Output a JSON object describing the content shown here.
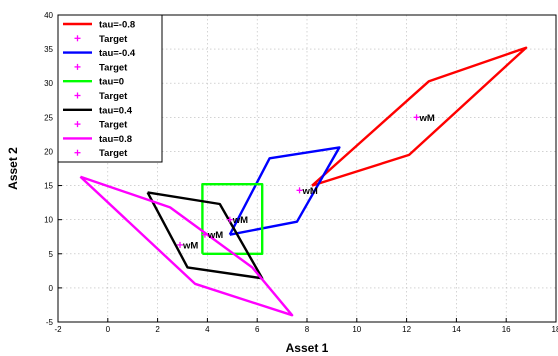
{
  "chart_data": {
    "type": "line",
    "xlabel": "Asset 1",
    "ylabel": "Asset 2",
    "xlim": [
      -2,
      18
    ],
    "ylim": [
      -5,
      40
    ],
    "xticks": [
      -2,
      0,
      2,
      4,
      6,
      8,
      10,
      12,
      14,
      16,
      18
    ],
    "yticks": [
      -5,
      0,
      5,
      10,
      15,
      20,
      25,
      30,
      35,
      40
    ],
    "grid": true,
    "legend_position": "top-left",
    "series": [
      {
        "name": "tau=-0.8",
        "color": "#ff0000",
        "points": [
          [
            8.2,
            15.0
          ],
          [
            12.9,
            30.3
          ],
          [
            16.8,
            35.2
          ],
          [
            12.1,
            19.5
          ],
          [
            8.2,
            15.0
          ]
        ]
      },
      {
        "name": "tau=-0.4",
        "color": "#0000ff",
        "points": [
          [
            4.9,
            7.8
          ],
          [
            6.5,
            19.0
          ],
          [
            9.3,
            20.6
          ],
          [
            7.6,
            9.7
          ],
          [
            4.9,
            7.8
          ]
        ]
      },
      {
        "name": "tau=0",
        "color": "#00ff00",
        "points": [
          [
            3.8,
            5.0
          ],
          [
            3.8,
            15.2
          ],
          [
            6.2,
            15.2
          ],
          [
            6.2,
            5.0
          ],
          [
            3.8,
            5.0
          ]
        ]
      },
      {
        "name": "tau=0.4",
        "color": "#000000",
        "points": [
          [
            1.6,
            14.0
          ],
          [
            3.2,
            3.0
          ],
          [
            6.2,
            1.4
          ],
          [
            4.5,
            12.3
          ],
          [
            1.6,
            14.0
          ]
        ]
      },
      {
        "name": "tau=0.8",
        "color": "#ff00ff",
        "points": [
          [
            -1.1,
            16.3
          ],
          [
            2.5,
            11.8
          ],
          [
            5.8,
            3.0
          ],
          [
            7.4,
            -4.0
          ],
          [
            3.5,
            0.6
          ],
          [
            -1.1,
            16.3
          ]
        ]
      }
    ],
    "targets": [
      {
        "x": 7.7,
        "y": 14.3,
        "label": "wM"
      },
      {
        "x": 12.4,
        "y": 25.0,
        "label": "wM"
      },
      {
        "x": 4.9,
        "y": 10.0,
        "label": "wM"
      },
      {
        "x": 3.9,
        "y": 7.8,
        "label": "wM"
      },
      {
        "x": 2.9,
        "y": 6.3,
        "label": "wM"
      }
    ],
    "target_color": "#ff00ff",
    "legend": [
      {
        "label": "tau=-0.8",
        "kind": "line",
        "color": "#ff0000"
      },
      {
        "label": "Target",
        "kind": "plus",
        "color": "#ff00ff"
      },
      {
        "label": "tau=-0.4",
        "kind": "line",
        "color": "#0000ff"
      },
      {
        "label": "Target",
        "kind": "plus",
        "color": "#ff00ff"
      },
      {
        "label": "tau=0",
        "kind": "line",
        "color": "#00ff00"
      },
      {
        "label": "Target",
        "kind": "plus",
        "color": "#ff00ff"
      },
      {
        "label": "tau=0.4",
        "kind": "line",
        "color": "#000000"
      },
      {
        "label": "Target",
        "kind": "plus",
        "color": "#ff00ff"
      },
      {
        "label": "tau=0.8",
        "kind": "line",
        "color": "#ff00ff"
      },
      {
        "label": "Target",
        "kind": "plus",
        "color": "#ff00ff"
      }
    ]
  }
}
